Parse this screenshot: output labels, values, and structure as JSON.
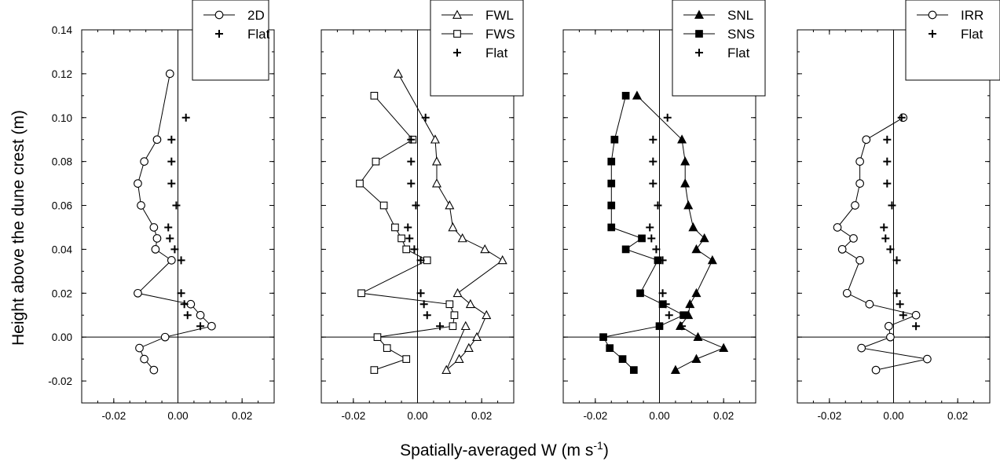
{
  "ylabel": "Height above the dune crest (m)",
  "xlabel": {
    "base": "Spatially-averaged W (m s",
    "sup": "-1",
    "close": ")"
  },
  "chart_data": [
    {
      "type": "scatter",
      "xlim": [
        -0.03,
        0.03
      ],
      "ylim": [
        -0.03,
        0.14
      ],
      "xticks": [
        -0.02,
        0.0,
        0.02
      ],
      "xtick_labels": [
        "-0.02",
        "0.00",
        "0.02"
      ],
      "yticks": [
        -0.02,
        0.0,
        0.02,
        0.04,
        0.06,
        0.08,
        0.1,
        0.12,
        0.14
      ],
      "ytick_labels": [
        "-0.02",
        "0.00",
        "0.02",
        "0.04",
        "0.06",
        "0.08",
        "0.10",
        "0.12",
        "0.14"
      ],
      "legend_position": "top-right",
      "series": [
        {
          "name": "2D",
          "marker": "open-circle",
          "line": true,
          "points": [
            [
              -0.0025,
              0.12
            ],
            [
              -0.0065,
              0.09
            ],
            [
              -0.0105,
              0.08
            ],
            [
              -0.0125,
              0.07
            ],
            [
              -0.0115,
              0.06
            ],
            [
              -0.0075,
              0.05
            ],
            [
              -0.0065,
              0.045
            ],
            [
              -0.007,
              0.04
            ],
            [
              -0.002,
              0.035
            ],
            [
              -0.0125,
              0.02
            ],
            [
              0.004,
              0.015
            ],
            [
              0.007,
              0.01
            ],
            [
              0.0105,
              0.005
            ],
            [
              -0.004,
              0.0
            ],
            [
              -0.012,
              -0.005
            ],
            [
              -0.0105,
              -0.01
            ],
            [
              -0.0075,
              -0.015
            ]
          ]
        },
        {
          "name": "Flat",
          "marker": "plus",
          "line": false,
          "points": [
            [
              0.0025,
              0.1
            ],
            [
              -0.002,
              0.09
            ],
            [
              -0.002,
              0.08
            ],
            [
              -0.002,
              0.07
            ],
            [
              -0.0005,
              0.06
            ],
            [
              -0.003,
              0.05
            ],
            [
              -0.0025,
              0.045
            ],
            [
              -0.001,
              0.04
            ],
            [
              0.001,
              0.035
            ],
            [
              0.001,
              0.02
            ],
            [
              0.002,
              0.015
            ],
            [
              0.003,
              0.01
            ],
            [
              0.007,
              0.005
            ]
          ]
        }
      ]
    },
    {
      "type": "scatter",
      "xlim": [
        -0.03,
        0.03
      ],
      "ylim": [
        -0.03,
        0.14
      ],
      "xticks": [
        -0.02,
        0.0,
        0.02
      ],
      "xtick_labels": [
        "-0.02",
        "0.00",
        "0.02"
      ],
      "yticks": [
        -0.02,
        0.0,
        0.02,
        0.04,
        0.06,
        0.08,
        0.1,
        0.12,
        0.14
      ],
      "ytick_labels": [
        "-0.02",
        "0.00",
        "0.02",
        "0.04",
        "0.06",
        "0.08",
        "0.10",
        "0.12",
        "0.14"
      ],
      "legend_position": "top-right",
      "series": [
        {
          "name": "FWL",
          "marker": "open-triangle",
          "line": true,
          "points": [
            [
              -0.006,
              0.12
            ],
            [
              0.0055,
              0.09
            ],
            [
              0.006,
              0.08
            ],
            [
              0.006,
              0.07
            ],
            [
              0.01,
              0.06
            ],
            [
              0.011,
              0.05
            ],
            [
              0.014,
              0.045
            ],
            [
              0.021,
              0.04
            ],
            [
              0.0265,
              0.035
            ],
            [
              0.0125,
              0.02
            ],
            [
              0.0165,
              0.015
            ],
            [
              0.0215,
              0.01
            ],
            [
              0.0185,
              0.0
            ],
            [
              0.016,
              -0.005
            ],
            [
              0.013,
              -0.01
            ],
            [
              0.009,
              -0.015
            ],
            [
              0.015,
              0.005
            ]
          ]
        },
        {
          "name": "FWS",
          "marker": "open-square",
          "line": true,
          "points": [
            [
              -0.0135,
              0.11
            ],
            [
              -0.0015,
              0.09
            ],
            [
              -0.013,
              0.08
            ],
            [
              -0.018,
              0.07
            ],
            [
              -0.0105,
              0.06
            ],
            [
              -0.007,
              0.05
            ],
            [
              -0.005,
              0.045
            ],
            [
              -0.0035,
              0.04
            ],
            [
              0.003,
              0.035
            ],
            [
              -0.0175,
              0.02
            ],
            [
              0.01,
              0.015
            ],
            [
              0.0115,
              0.01
            ],
            [
              0.011,
              0.005
            ],
            [
              -0.0125,
              0.0
            ],
            [
              -0.0095,
              -0.005
            ],
            [
              -0.0035,
              -0.01
            ],
            [
              -0.0135,
              -0.015
            ]
          ]
        },
        {
          "name": "Flat",
          "marker": "plus",
          "line": false,
          "points": [
            [
              0.0025,
              0.1
            ],
            [
              -0.002,
              0.09
            ],
            [
              -0.002,
              0.08
            ],
            [
              -0.002,
              0.07
            ],
            [
              -0.0005,
              0.06
            ],
            [
              -0.003,
              0.05
            ],
            [
              -0.0025,
              0.045
            ],
            [
              -0.001,
              0.04
            ],
            [
              0.001,
              0.035
            ],
            [
              0.001,
              0.02
            ],
            [
              0.002,
              0.015
            ],
            [
              0.003,
              0.01
            ],
            [
              0.007,
              0.005
            ]
          ]
        }
      ]
    },
    {
      "type": "scatter",
      "xlim": [
        -0.03,
        0.03
      ],
      "ylim": [
        -0.03,
        0.14
      ],
      "xticks": [
        -0.02,
        0.0,
        0.02
      ],
      "xtick_labels": [
        "-0.02",
        "0.00",
        "0.02"
      ],
      "yticks": [
        -0.02,
        0.0,
        0.02,
        0.04,
        0.06,
        0.08,
        0.1,
        0.12,
        0.14
      ],
      "ytick_labels": [
        "-0.02",
        "0.00",
        "0.02",
        "0.04",
        "0.06",
        "0.08",
        "0.10",
        "0.12",
        "0.14"
      ],
      "legend_position": "top-right",
      "series": [
        {
          "name": "SNL",
          "marker": "filled-triangle",
          "line": true,
          "points": [
            [
              -0.007,
              0.11
            ],
            [
              0.007,
              0.09
            ],
            [
              0.008,
              0.08
            ],
            [
              0.008,
              0.07
            ],
            [
              0.009,
              0.06
            ],
            [
              0.0105,
              0.05
            ],
            [
              0.014,
              0.045
            ],
            [
              0.0115,
              0.04
            ],
            [
              0.0165,
              0.035
            ],
            [
              0.0115,
              0.02
            ],
            [
              0.0095,
              0.015
            ],
            [
              0.009,
              0.01
            ],
            [
              0.0065,
              0.005
            ],
            [
              0.012,
              0.0
            ],
            [
              0.02,
              -0.005
            ],
            [
              0.0115,
              -0.01
            ],
            [
              0.005,
              -0.015
            ]
          ]
        },
        {
          "name": "SNS",
          "marker": "filled-square",
          "line": true,
          "points": [
            [
              -0.0105,
              0.11
            ],
            [
              -0.014,
              0.09
            ],
            [
              -0.015,
              0.08
            ],
            [
              -0.015,
              0.07
            ],
            [
              -0.015,
              0.06
            ],
            [
              -0.015,
              0.05
            ],
            [
              -0.0055,
              0.045
            ],
            [
              -0.0105,
              0.04
            ],
            [
              -0.0005,
              0.035
            ],
            [
              -0.006,
              0.02
            ],
            [
              0.001,
              0.015
            ],
            [
              0.0075,
              0.01
            ],
            [
              0.0,
              0.005
            ],
            [
              -0.0175,
              0.0
            ],
            [
              -0.0155,
              -0.005
            ],
            [
              -0.0115,
              -0.01
            ],
            [
              -0.008,
              -0.015
            ]
          ]
        },
        {
          "name": "Flat",
          "marker": "plus",
          "line": false,
          "points": [
            [
              0.0025,
              0.1
            ],
            [
              -0.002,
              0.09
            ],
            [
              -0.002,
              0.08
            ],
            [
              -0.002,
              0.07
            ],
            [
              -0.0005,
              0.06
            ],
            [
              -0.003,
              0.05
            ],
            [
              -0.0025,
              0.045
            ],
            [
              -0.001,
              0.04
            ],
            [
              0.001,
              0.035
            ],
            [
              0.001,
              0.02
            ],
            [
              0.002,
              0.015
            ],
            [
              0.003,
              0.01
            ],
            [
              0.007,
              0.005
            ]
          ]
        }
      ]
    },
    {
      "type": "scatter",
      "xlim": [
        -0.03,
        0.03
      ],
      "ylim": [
        -0.03,
        0.14
      ],
      "xticks": [
        -0.02,
        0.0,
        0.02
      ],
      "xtick_labels": [
        "-0.02",
        "0.00",
        "0.02"
      ],
      "yticks": [
        -0.02,
        0.0,
        0.02,
        0.04,
        0.06,
        0.08,
        0.1,
        0.12,
        0.14
      ],
      "ytick_labels": [
        "-0.02",
        "0.00",
        "0.02",
        "0.04",
        "0.06",
        "0.08",
        "0.10",
        "0.12",
        "0.14"
      ],
      "legend_position": "top-right",
      "series": [
        {
          "name": "IRR",
          "marker": "open-circle",
          "line": true,
          "points": [
            [
              0.003,
              0.1
            ],
            [
              -0.0085,
              0.09
            ],
            [
              -0.0105,
              0.08
            ],
            [
              -0.0105,
              0.07
            ],
            [
              -0.012,
              0.06
            ],
            [
              -0.0175,
              0.05
            ],
            [
              -0.0125,
              0.045
            ],
            [
              -0.016,
              0.04
            ],
            [
              -0.0105,
              0.035
            ],
            [
              -0.0145,
              0.02
            ],
            [
              -0.0075,
              0.015
            ],
            [
              0.007,
              0.01
            ],
            [
              -0.0015,
              0.005
            ],
            [
              -0.001,
              0.0
            ],
            [
              -0.01,
              -0.005
            ],
            [
              0.0105,
              -0.01
            ],
            [
              -0.0055,
              -0.015
            ]
          ]
        },
        {
          "name": "Flat",
          "marker": "plus",
          "line": false,
          "points": [
            [
              0.0025,
              0.1
            ],
            [
              -0.002,
              0.09
            ],
            [
              -0.002,
              0.08
            ],
            [
              -0.002,
              0.07
            ],
            [
              -0.0005,
              0.06
            ],
            [
              -0.003,
              0.05
            ],
            [
              -0.0025,
              0.045
            ],
            [
              -0.001,
              0.04
            ],
            [
              0.001,
              0.035
            ],
            [
              0.001,
              0.02
            ],
            [
              0.002,
              0.015
            ],
            [
              0.003,
              0.01
            ],
            [
              0.007,
              0.005
            ]
          ]
        }
      ]
    }
  ]
}
